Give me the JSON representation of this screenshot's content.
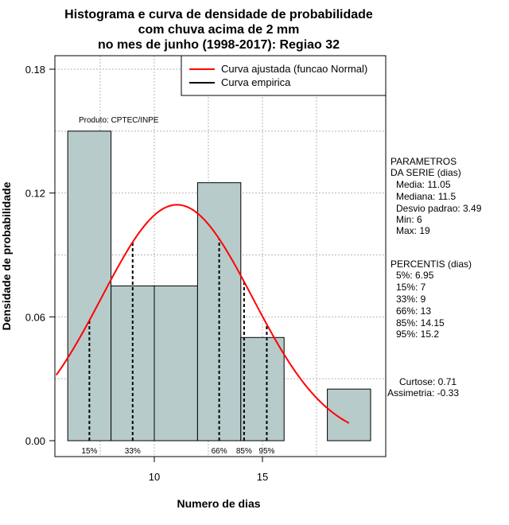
{
  "chart_data": {
    "type": "bar",
    "title_lines": [
      "Histograma e curva de densidade de probabilidade",
      "com chuva acima de 2 mm",
      "no mes de junho (1998-2017): Regiao 32"
    ],
    "xlabel": "Numero de dias",
    "ylabel": "Densidade de probabilidade",
    "xlim": [
      5.4,
      20.5
    ],
    "ylim": [
      0,
      0.18
    ],
    "x_ticks": [
      10,
      15
    ],
    "y_ticks": [
      0.0,
      0.06,
      0.12,
      0.18
    ],
    "y_tick_labels": [
      "0.00",
      "0.06",
      "0.12",
      "0.18"
    ],
    "grid": true,
    "bars": [
      {
        "x0": 6,
        "x1": 8,
        "density": 0.15
      },
      {
        "x0": 8,
        "x1": 10,
        "density": 0.075
      },
      {
        "x0": 10,
        "x1": 12,
        "density": 0.075
      },
      {
        "x0": 12,
        "x1": 14,
        "density": 0.125
      },
      {
        "x0": 14,
        "x1": 16,
        "density": 0.05
      },
      {
        "x0": 16,
        "x1": 18,
        "density": 0.0
      },
      {
        "x0": 18,
        "x1": 20,
        "density": 0.025
      }
    ],
    "normal_curve": {
      "mean": 11.05,
      "sd": 3.49,
      "x_from": 5.4,
      "x_to": 19
    },
    "percentile_lines": [
      {
        "label": "15%",
        "x": 7
      },
      {
        "label": "33%",
        "x": 9
      },
      {
        "label": "66%",
        "x": 13
      },
      {
        "label": "85%",
        "x": 14.15
      },
      {
        "label": "95%",
        "x": 15.2
      }
    ],
    "legend": {
      "position": "top-right",
      "entries": [
        {
          "label": "Curva ajustada (funcao Normal)",
          "color": "#ff0000"
        },
        {
          "label": "Curva empirica",
          "color": "#000000"
        }
      ]
    },
    "annotation": "Produto: CPTEC/INPE",
    "bar_color": "#b7cbcb",
    "curve_color": "#ff0000"
  },
  "side_panel": {
    "parametros": [
      "PARAMETROS",
      "DA SERIE (dias)",
      "Media: 11.05",
      "Mediana: 11.5",
      "Desvio padrao: 3.49",
      "Min: 6",
      "Max: 19"
    ],
    "percentis": [
      "PERCENTIS (dias)",
      "5%: 6.95",
      "15%: 7",
      "33%: 9",
      "66%: 13",
      "85%: 14.15",
      "95%: 15.2"
    ],
    "shape": [
      "Curtose: 0.71",
      "Assimetria: -0.33"
    ]
  }
}
